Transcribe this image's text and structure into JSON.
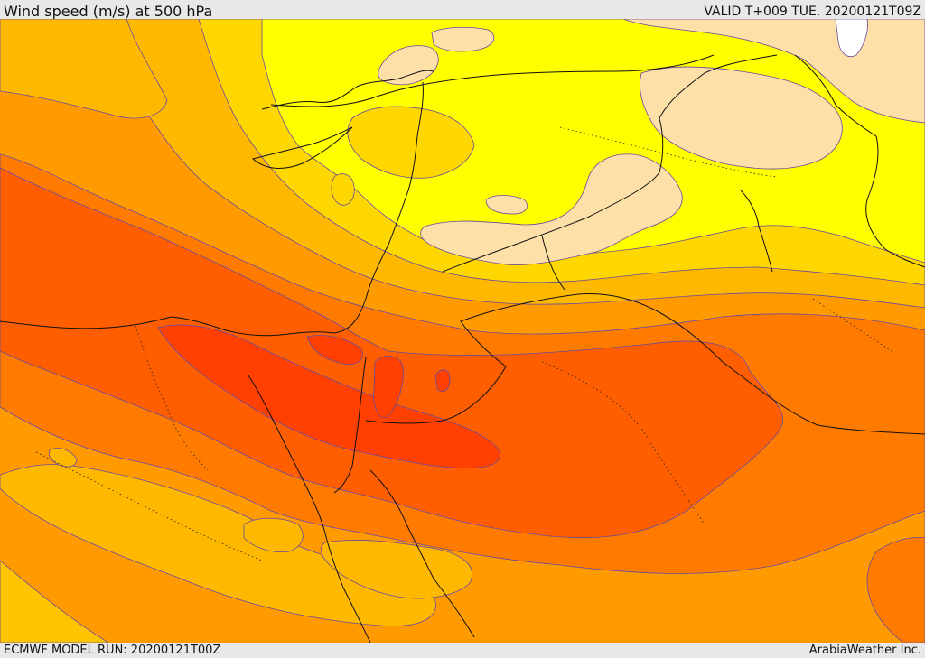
{
  "header": {
    "title": "Wind speed (m/s) at 500 hPa",
    "valid": "VALID T+009 TUE. 20200121T09Z"
  },
  "footer": {
    "model_run": "ECMWF MODEL RUN: 20200121T00Z",
    "credit": "ArabiaWeather Inc."
  },
  "map": {
    "field": "wind-speed-500hPa",
    "band_colors": {
      "lightest": "#fde0a8",
      "yellow": "#ffff00",
      "gold": "#ffd700",
      "light-orange": "#ffb800",
      "orange": "#ff9a00",
      "dark-orange": "#ff7b00",
      "red-orange": "#ff5e00",
      "red": "#ff4000",
      "white": "#ffffff"
    }
  }
}
